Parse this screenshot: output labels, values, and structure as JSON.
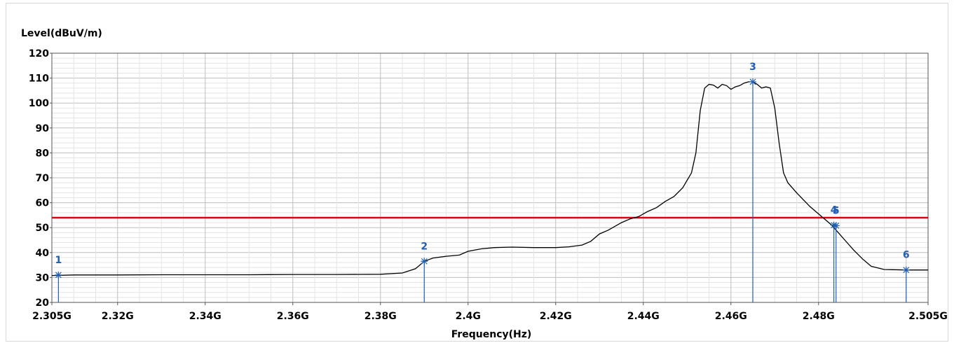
{
  "chart_data": {
    "type": "line",
    "ylabel": "Level(dBuV/m)",
    "xlabel": "Frequency(Hz)",
    "xlim": [
      2.305,
      2.505
    ],
    "ylim": [
      20,
      120
    ],
    "x_unit": "GHz",
    "x_ticks": [
      {
        "value": 2.305,
        "label": "2.305G"
      },
      {
        "value": 2.32,
        "label": "2.32G"
      },
      {
        "value": 2.34,
        "label": "2.34G"
      },
      {
        "value": 2.36,
        "label": "2.36G"
      },
      {
        "value": 2.38,
        "label": "2.38G"
      },
      {
        "value": 2.4,
        "label": "2.4G"
      },
      {
        "value": 2.42,
        "label": "2.42G"
      },
      {
        "value": 2.44,
        "label": "2.44G"
      },
      {
        "value": 2.46,
        "label": "2.46G"
      },
      {
        "value": 2.48,
        "label": "2.48G"
      },
      {
        "value": 2.505,
        "label": "2.505G"
      }
    ],
    "y_ticks": [
      20,
      30,
      40,
      50,
      60,
      70,
      80,
      90,
      100,
      110,
      120
    ],
    "grid": true,
    "limit_line": {
      "value": 54,
      "color": "#e00000"
    },
    "series": [
      {
        "color": "#000000",
        "x": [
          2.305,
          2.31,
          2.32,
          2.33,
          2.34,
          2.35,
          2.36,
          2.37,
          2.38,
          2.385,
          2.388,
          2.39,
          2.392,
          2.395,
          2.398,
          2.4,
          2.403,
          2.406,
          2.41,
          2.415,
          2.42,
          2.423,
          2.426,
          2.428,
          2.43,
          2.432,
          2.435,
          2.437,
          2.439,
          2.441,
          2.443,
          2.445,
          2.447,
          2.449,
          2.451,
          2.452,
          2.453,
          2.454,
          2.455,
          2.456,
          2.457,
          2.458,
          2.459,
          2.46,
          2.461,
          2.462,
          2.463,
          2.464,
          2.465,
          2.466,
          2.467,
          2.468,
          2.469,
          2.47,
          2.471,
          2.472,
          2.473,
          2.475,
          2.478,
          2.48,
          2.482,
          2.483,
          2.484,
          2.486,
          2.488,
          2.49,
          2.492,
          2.495,
          2.5,
          2.505
        ],
        "y": [
          30.8,
          31.0,
          31.0,
          31.1,
          31.1,
          31.1,
          31.2,
          31.2,
          31.3,
          31.8,
          33.5,
          36.5,
          37.8,
          38.5,
          39.0,
          40.5,
          41.5,
          42.0,
          42.2,
          42.0,
          42.0,
          42.3,
          43.0,
          44.5,
          47.5,
          49.0,
          52.0,
          53.5,
          54.5,
          56.5,
          58.0,
          60.5,
          62.5,
          66.0,
          72.0,
          80.0,
          97.0,
          106.0,
          107.5,
          107.2,
          106.0,
          107.5,
          107.0,
          105.5,
          106.5,
          107.0,
          108.0,
          108.5,
          108.5,
          107.5,
          106.0,
          106.5,
          106.0,
          98.0,
          84.0,
          72.0,
          68.0,
          64.0,
          58.5,
          55.5,
          52.5,
          51.0,
          49.0,
          45.0,
          41.0,
          37.5,
          34.5,
          33.2,
          33.0,
          33.0
        ]
      }
    ],
    "markers": [
      {
        "label": "1",
        "x": 2.3065,
        "y": 31.0
      },
      {
        "label": "2",
        "x": 2.39,
        "y": 36.5
      },
      {
        "label": "3",
        "x": 2.465,
        "y": 108.5
      },
      {
        "label": "4",
        "x": 2.4835,
        "y": 51.0
      },
      {
        "label": "5",
        "x": 2.484,
        "y": 50.8
      },
      {
        "label": "6",
        "x": 2.5,
        "y": 33.0
      }
    ],
    "marker_color": "#1f5fb5"
  }
}
